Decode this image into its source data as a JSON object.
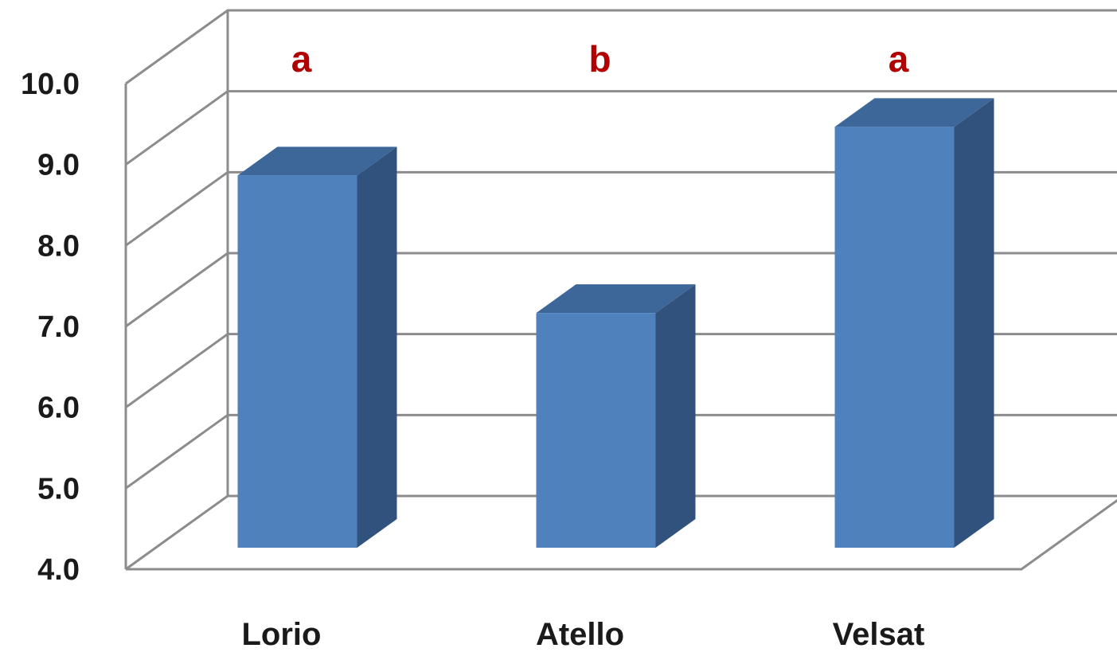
{
  "chart_data": {
    "type": "bar",
    "style": "3d-column",
    "categories": [
      "Lorio",
      "Atello",
      "Velsat"
    ],
    "values": [
      8.6,
      6.9,
      9.2
    ],
    "significance_letters": [
      "a",
      "b",
      "a"
    ],
    "ylim": [
      4.0,
      10.0
    ],
    "yticks": [
      "4.0",
      "5.0",
      "6.0",
      "7.0",
      "8.0",
      "9.0",
      "10.0"
    ],
    "title": "",
    "xlabel": "",
    "ylabel": "",
    "grid": true,
    "legend": "none",
    "colors": {
      "bar_front": "#4f81bd",
      "bar_side": "#30527d",
      "bar_top": "#3d6699",
      "grid": "#8c8c8c",
      "letters": "#b00000"
    }
  }
}
